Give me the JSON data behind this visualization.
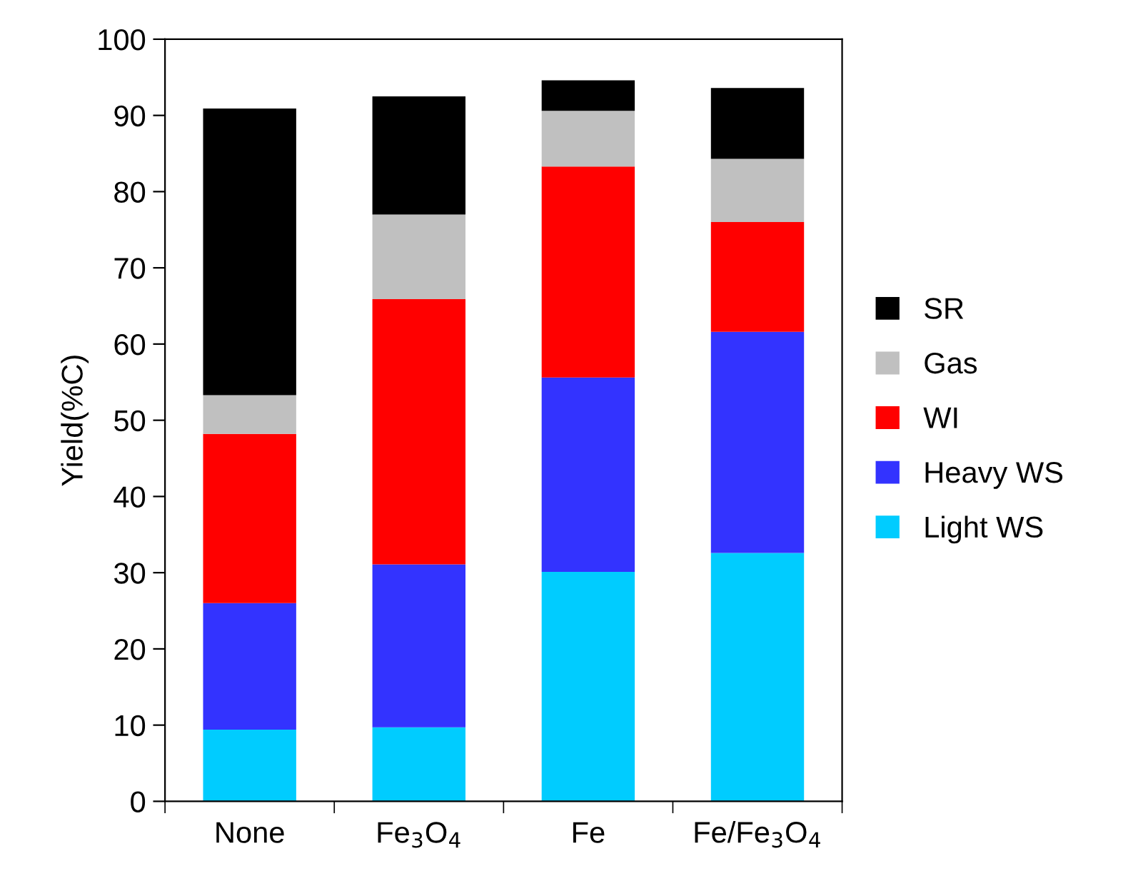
{
  "chart_data": {
    "type": "bar",
    "stacked": true,
    "ylabel": "Yield(%C)",
    "categories": [
      "None",
      "Fe$_{3}$O$_{4}$",
      "Fe",
      "Fe/Fe$_{3}$O$_{4}$"
    ],
    "series": [
      {
        "name": "Light WS",
        "color": "#00ccff",
        "values": [
          9.4,
          9.7,
          30.1,
          32.6
        ]
      },
      {
        "name": "Heavy WS",
        "color": "#3333ff",
        "values": [
          16.6,
          21.4,
          25.5,
          29.0
        ]
      },
      {
        "name": "WI",
        "color": "#ff0000",
        "values": [
          22.2,
          34.8,
          27.7,
          14.4
        ]
      },
      {
        "name": "Gas",
        "color": "#c0c0c0",
        "values": [
          5.1,
          11.1,
          7.3,
          8.3
        ]
      },
      {
        "name": "SR",
        "color": "#000000",
        "values": [
          37.6,
          15.5,
          4.0,
          9.3
        ]
      }
    ],
    "ylim": [
      0,
      100
    ],
    "yticks": [
      0,
      10,
      20,
      30,
      40,
      50,
      60,
      70,
      80,
      90,
      100
    ],
    "grid": false,
    "legend": "right"
  }
}
